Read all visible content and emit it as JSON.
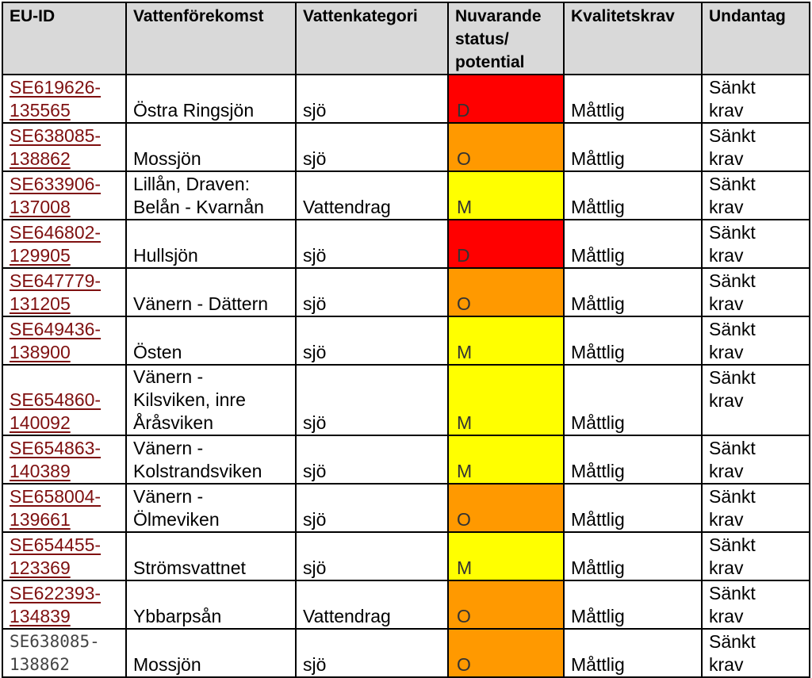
{
  "colors": {
    "D": "#ff0000",
    "O": "#ff9900",
    "M": "#ffff00",
    "header_bg": "#d9d9d9",
    "link": "#7f1010"
  },
  "table": {
    "headers": [
      "EU-ID",
      "Vattenförekomst",
      "Vattenkategori",
      "Nuvarande\nstatus/\npotential",
      "Kvalitetskrav",
      "Undantag"
    ],
    "rows": [
      {
        "id": "SE619626-\n135565",
        "name": "Östra Ringsjön",
        "category": "sjö",
        "status": "D",
        "quality": "Måttlig",
        "exception": "Sänkt\nkrav",
        "link": true
      },
      {
        "id": "SE638085-\n138862",
        "name": "Mossjön",
        "category": "sjö",
        "status": "O",
        "quality": "Måttlig",
        "exception": "Sänkt\nkrav",
        "link": true
      },
      {
        "id": "SE633906-\n137008",
        "name": "Lillån, Draven:\nBelån - Kvarnån",
        "category": "Vattendrag",
        "status": "M",
        "quality": "Måttlig",
        "exception": "Sänkt\nkrav",
        "link": true
      },
      {
        "id": "SE646802-\n129905",
        "name": "Hullsjön",
        "category": "sjö",
        "status": "D",
        "quality": "Måttlig",
        "exception": "Sänkt\nkrav",
        "link": true
      },
      {
        "id": "SE647779-\n131205",
        "name": "Vänern - Dättern",
        "category": "sjö",
        "status": "O",
        "quality": "Måttlig",
        "exception": "Sänkt\nkrav",
        "link": true
      },
      {
        "id": "SE649436-\n138900",
        "name": "Östen",
        "category": "sjö",
        "status": "M",
        "quality": "Måttlig",
        "exception": "Sänkt\nkrav",
        "link": true
      },
      {
        "id": "SE654860-\n140092",
        "name": "Vänern -\nKilsviken, inre\nÅråsviken",
        "category": "sjö",
        "status": "M",
        "quality": "Måttlig",
        "exception": "Sänkt\nkrav",
        "link": true
      },
      {
        "id": "SE654863-\n140389",
        "name": "Vänern -\nKolstrandsviken",
        "category": "sjö",
        "status": "M",
        "quality": "Måttlig",
        "exception": "Sänkt\nkrav",
        "link": true
      },
      {
        "id": "SE658004-\n139661",
        "name": "Vänern -\nÖlmeviken",
        "category": "sjö",
        "status": "O",
        "quality": "Måttlig",
        "exception": "Sänkt\nkrav",
        "link": true
      },
      {
        "id": "SE654455-\n123369",
        "name": "Strömsvattnet",
        "category": "sjö",
        "status": "M",
        "quality": "Måttlig",
        "exception": "Sänkt\nkrav",
        "link": true
      },
      {
        "id": "SE622393-\n134839",
        "name": "Ybbarpsån",
        "category": "Vattendrag",
        "status": "O",
        "quality": "Måttlig",
        "exception": "Sänkt\nkrav",
        "link": true
      },
      {
        "id": "SE638085-\n138862",
        "name": "Mossjön",
        "category": "sjö",
        "status": "O",
        "quality": "Måttlig",
        "exception": "Sänkt\nkrav",
        "link": false
      }
    ]
  }
}
